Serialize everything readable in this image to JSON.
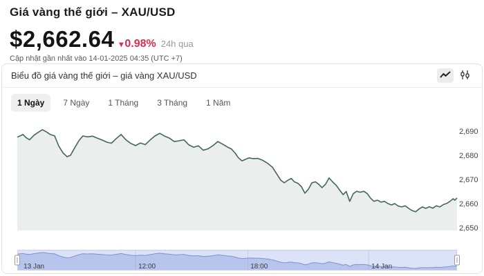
{
  "page": {
    "title": "Giá vàng thế giới – XAU/USD",
    "price": "$2,662.64",
    "change_arrow": "▾",
    "change_percent": "0.98%",
    "change_period": "24h qua",
    "updated_text": "Cập nhật gần nhất vào 14-01-2025 04:35 (UTC +7)"
  },
  "panel": {
    "title": "Biểu đồ giá vàng thế giới – giá vàng XAU/USD",
    "chart_type_icons": [
      "line-chart-icon",
      "candlestick-icon"
    ],
    "tabs": [
      {
        "label": "1 Ngày",
        "active": true
      },
      {
        "label": "7 Ngày",
        "active": false
      },
      {
        "label": "1 Tháng",
        "active": false
      },
      {
        "label": "3 Tháng",
        "active": false
      },
      {
        "label": "1 Năm",
        "active": false
      }
    ]
  },
  "colors": {
    "negative_red": "#d92c52",
    "line": "#41665c",
    "area_fill": "rgba(65,102,92,0.11)",
    "axis_label": "#444444",
    "nav_bg": "#dce3f8",
    "nav_area": "#b7c4ec",
    "nav_line": "#7e91d3",
    "nav_outline": "#c9cfe9",
    "nav_grid": "#8f9cc9",
    "nav_label": "#3d3d3d",
    "handle_fill": "#ffffff",
    "handle_stroke": "#9a9a9a"
  },
  "chart_data": {
    "type": "area",
    "title": "Biểu đồ giá vàng thế giới – giá vàng XAU/USD",
    "xlabel": "",
    "ylabel": "",
    "ylim": [
      2646,
      2694
    ],
    "grid": false,
    "legend_position": "none",
    "y_ticks": [
      {
        "label": "2,650",
        "value": 2650
      },
      {
        "label": "2,660",
        "value": 2660
      },
      {
        "label": "2,670",
        "value": 2670
      },
      {
        "label": "2,680",
        "value": 2680
      },
      {
        "label": "2,690",
        "value": 2690
      }
    ],
    "x_ticks": [
      {
        "label": "13 Jan",
        "f": 0.008,
        "grid": false
      },
      {
        "label": "12:00",
        "f": 0.269,
        "grid": true
      },
      {
        "label": "18:00",
        "f": 0.524,
        "grid": true
      },
      {
        "label": "14 Jan",
        "f": 0.799,
        "grid": true
      }
    ],
    "series": [
      {
        "name": "XAU/USD",
        "points": [
          [
            0.0,
            2687.5
          ],
          [
            0.013,
            2688.6
          ],
          [
            0.02,
            2687.3
          ],
          [
            0.028,
            2686.4
          ],
          [
            0.038,
            2688.3
          ],
          [
            0.047,
            2689.4
          ],
          [
            0.057,
            2690.6
          ],
          [
            0.066,
            2689.7
          ],
          [
            0.075,
            2688.6
          ],
          [
            0.085,
            2688.0
          ],
          [
            0.094,
            2683.9
          ],
          [
            0.104,
            2681.0
          ],
          [
            0.113,
            2679.4
          ],
          [
            0.121,
            2680.0
          ],
          [
            0.13,
            2682.9
          ],
          [
            0.14,
            2686.0
          ],
          [
            0.149,
            2688.0
          ],
          [
            0.16,
            2687.6
          ],
          [
            0.171,
            2687.9
          ],
          [
            0.182,
            2687.1
          ],
          [
            0.193,
            2686.3
          ],
          [
            0.204,
            2685.4
          ],
          [
            0.214,
            2685.0
          ],
          [
            0.225,
            2686.9
          ],
          [
            0.236,
            2688.6
          ],
          [
            0.247,
            2686.4
          ],
          [
            0.258,
            2684.9
          ],
          [
            0.269,
            2684.0
          ],
          [
            0.28,
            2685.1
          ],
          [
            0.291,
            2684.4
          ],
          [
            0.302,
            2686.3
          ],
          [
            0.313,
            2688.0
          ],
          [
            0.324,
            2689.1
          ],
          [
            0.335,
            2687.9
          ],
          [
            0.346,
            2687.1
          ],
          [
            0.357,
            2685.7
          ],
          [
            0.368,
            2686.0
          ],
          [
            0.379,
            2686.4
          ],
          [
            0.39,
            2684.3
          ],
          [
            0.401,
            2683.3
          ],
          [
            0.412,
            2683.9
          ],
          [
            0.423,
            2682.1
          ],
          [
            0.434,
            2682.7
          ],
          [
            0.445,
            2684.0
          ],
          [
            0.456,
            2685.7
          ],
          [
            0.467,
            2684.6
          ],
          [
            0.478,
            2683.4
          ],
          [
            0.487,
            2682.6
          ],
          [
            0.495,
            2681.0
          ],
          [
            0.503,
            2678.9
          ],
          [
            0.511,
            2677.7
          ],
          [
            0.519,
            2678.3
          ],
          [
            0.527,
            2678.9
          ],
          [
            0.536,
            2678.6
          ],
          [
            0.547,
            2678.7
          ],
          [
            0.558,
            2677.9
          ],
          [
            0.569,
            2676.7
          ],
          [
            0.58,
            2675.1
          ],
          [
            0.59,
            2672.3
          ],
          [
            0.599,
            2669.7
          ],
          [
            0.607,
            2668.6
          ],
          [
            0.615,
            2669.6
          ],
          [
            0.623,
            2670.4
          ],
          [
            0.63,
            2669.0
          ],
          [
            0.638,
            2668.4
          ],
          [
            0.646,
            2667.0
          ],
          [
            0.654,
            2664.3
          ],
          [
            0.662,
            2665.9
          ],
          [
            0.67,
            2668.6
          ],
          [
            0.678,
            2669.0
          ],
          [
            0.686,
            2667.9
          ],
          [
            0.693,
            2666.6
          ],
          [
            0.701,
            2668.0
          ],
          [
            0.709,
            2670.6
          ],
          [
            0.717,
            2669.0
          ],
          [
            0.725,
            2667.6
          ],
          [
            0.733,
            2665.6
          ],
          [
            0.741,
            2663.7
          ],
          [
            0.748,
            2665.0
          ],
          [
            0.756,
            2660.9
          ],
          [
            0.764,
            2664.1
          ],
          [
            0.772,
            2665.1
          ],
          [
            0.78,
            2664.7
          ],
          [
            0.788,
            2665.1
          ],
          [
            0.796,
            2664.1
          ],
          [
            0.803,
            2662.3
          ],
          [
            0.811,
            2660.9
          ],
          [
            0.819,
            2661.4
          ],
          [
            0.827,
            2660.6
          ],
          [
            0.835,
            2660.9
          ],
          [
            0.843,
            2660.0
          ],
          [
            0.851,
            2659.4
          ],
          [
            0.858,
            2660.0
          ],
          [
            0.866,
            2659.0
          ],
          [
            0.874,
            2658.6
          ],
          [
            0.882,
            2659.1
          ],
          [
            0.89,
            2658.0
          ],
          [
            0.898,
            2657.1
          ],
          [
            0.906,
            2656.6
          ],
          [
            0.913,
            2657.7
          ],
          [
            0.921,
            2658.6
          ],
          [
            0.929,
            2658.0
          ],
          [
            0.937,
            2658.7
          ],
          [
            0.945,
            2658.1
          ],
          [
            0.953,
            2659.1
          ],
          [
            0.961,
            2658.6
          ],
          [
            0.969,
            2659.6
          ],
          [
            0.976,
            2660.0
          ],
          [
            0.984,
            2660.9
          ],
          [
            0.991,
            2662.0
          ],
          [
            0.995,
            2661.4
          ],
          [
            1.0,
            2662.3
          ]
        ]
      }
    ]
  }
}
